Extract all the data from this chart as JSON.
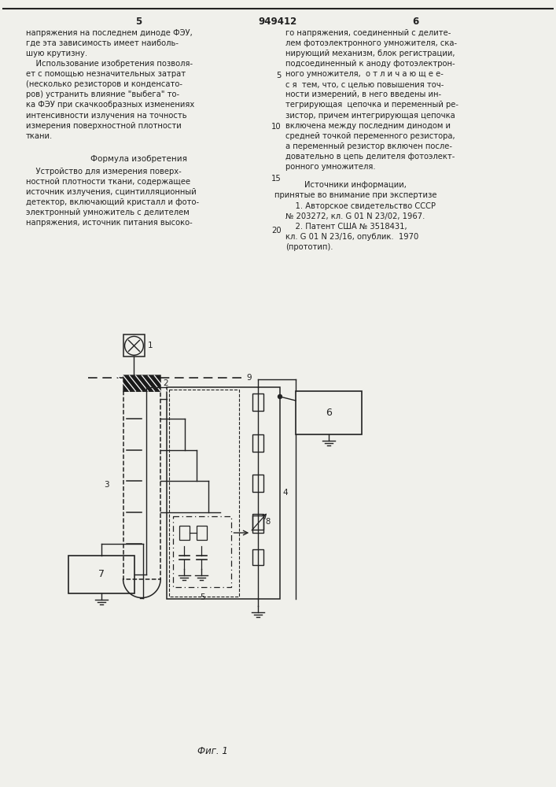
{
  "page_width": 7.07,
  "page_height": 10.0,
  "bg_color": "#f0f0eb",
  "line_color": "#222222",
  "text_color": "#222222",
  "title_number": "949412",
  "col_left": "5",
  "col_right": "6",
  "left_col_lines": [
    "напряжения на последнем диноде ФЭУ,",
    "где эта зависимость имеет наиболь-",
    "шую крутизну.",
    "    Использование изобретения позволя-",
    "ет с помощью незначительных затрат",
    "(несколько резисторов и конденсато-",
    "ров) устранить влияние \"выбега\" то-",
    "ка ФЭУ при скачкообразных изменениях",
    "интенсивности излучения на точность",
    "измерения поверхностной плотности",
    "ткани."
  ],
  "right_col_lines": [
    "го напряжения, соединенный с делите-",
    "лем фотоэлектронного умножителя, ска-",
    "нирующий механизм, блок регистрации,",
    "подсоединенный к аноду фотоэлектрон-",
    "ного умножителя,  о т л и ч а ю щ е е-",
    "с я  тем, что, с целью повышения точ-",
    "ности измерений, в него введены ин-",
    "тегрирующая  цепочка и переменный ре-",
    "зистор, причем интегрирующая цепочка",
    "включена между последним динодом и",
    "средней точкой переменного резистора,",
    "а переменный резистор включен после-",
    "довательно в цепь делителя фотоэлект-",
    "ронного умножителя."
  ],
  "formula_header": "Формула изобретения",
  "formula_lines": [
    "    Устройство для измерения поверх-",
    "ностной плотности ткани, содержащее",
    "источник излучения, сцинтилляционный",
    "детектор, включающий кристалл и фото-",
    "электронный умножитель с делителем",
    "напряжения, источник питания высоко-"
  ],
  "sources_header": "Источники информации,",
  "sources_sub": "принятые во внимание при экспертизе",
  "source1": "    1. Авторское свидетельство СССР",
  "source1b": "№ 203272, кл. G 01 N 23/02, 1967.",
  "source2": "    2. Патент США № 3518431,",
  "source2b": "кл. G 01 N 23/16, опублик.  1970",
  "source2c": "(прототип).",
  "fig_caption": "Фиг. 1"
}
